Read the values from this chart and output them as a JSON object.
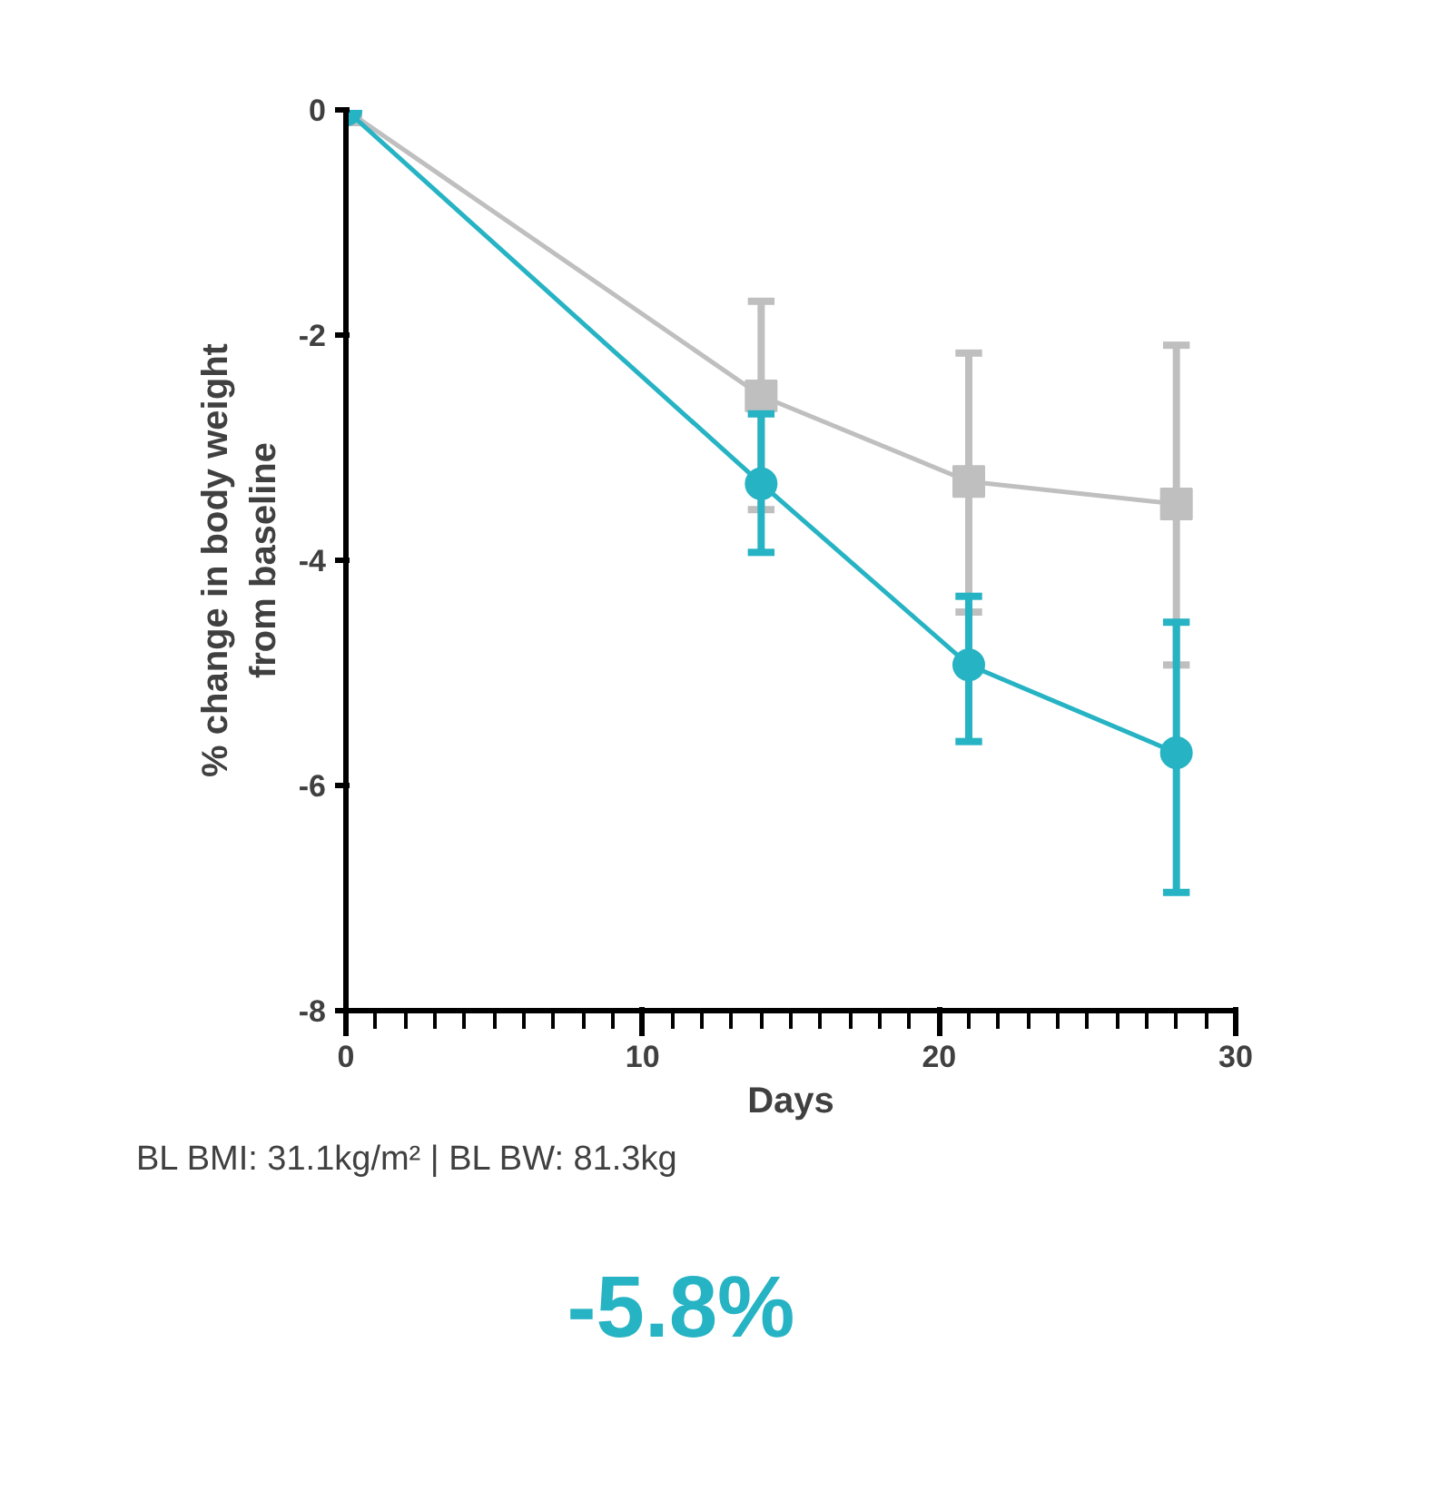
{
  "chart_data": {
    "type": "line",
    "xlabel": "Days",
    "ylabel": "% change in body weight\nfrom baseline",
    "xlim": [
      0,
      30
    ],
    "xticks": [
      0,
      10,
      20,
      30
    ],
    "ylim": [
      -8,
      0
    ],
    "yticks": [
      0,
      -2,
      -4,
      -6,
      -8
    ],
    "grid": false,
    "series": [
      {
        "color": "#bfbfbf",
        "marker": "square",
        "x": [
          0,
          14,
          21,
          28
        ],
        "values": [
          0,
          -2.54,
          -3.3,
          -3.5
        ],
        "errors": [
          null,
          [
            -3.55,
            -1.7
          ],
          [
            -4.46,
            -2.16
          ],
          [
            -4.93,
            -2.09
          ]
        ]
      },
      {
        "color": "#26b3c4",
        "marker": "circle",
        "x": [
          0,
          14,
          21,
          28
        ],
        "values": [
          0,
          -3.32,
          -4.93,
          -5.71
        ],
        "errors": [
          null,
          [
            -3.93,
            -2.7
          ],
          [
            -5.61,
            -4.32
          ],
          [
            -6.95,
            -4.55
          ]
        ]
      }
    ],
    "annotations": [
      "BL BMI: 31.1kg/m² | BL BW: 81.3kg",
      "-5.8%"
    ]
  }
}
